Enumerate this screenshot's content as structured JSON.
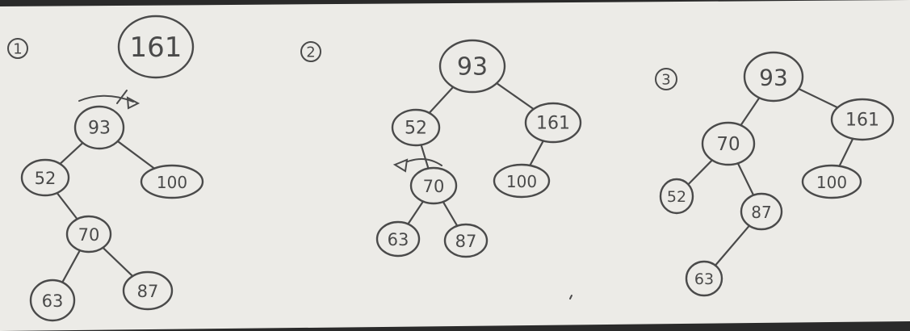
{
  "colors": {
    "paper": "#ecebe7",
    "ink": "#4a4a4a",
    "background": "#2a2a2a"
  },
  "steps": [
    {
      "id": "step-1",
      "label": "1",
      "nodes": [
        {
          "key": "161",
          "text": "161"
        },
        {
          "key": "93",
          "text": "93"
        },
        {
          "key": "52",
          "text": "52"
        },
        {
          "key": "100",
          "text": "100"
        },
        {
          "key": "70",
          "text": "70"
        },
        {
          "key": "63",
          "text": "63"
        },
        {
          "key": "87",
          "text": "87"
        }
      ],
      "edges": [
        [
          "93",
          "52"
        ],
        [
          "93",
          "100"
        ],
        [
          "52",
          "70"
        ],
        [
          "70",
          "63"
        ],
        [
          "70",
          "87"
        ]
      ],
      "rotation_arrow": "right-rotation-at-93"
    },
    {
      "id": "step-2",
      "label": "2",
      "nodes": [
        {
          "key": "93",
          "text": "93"
        },
        {
          "key": "52",
          "text": "52"
        },
        {
          "key": "161",
          "text": "161"
        },
        {
          "key": "70",
          "text": "70"
        },
        {
          "key": "100",
          "text": "100"
        },
        {
          "key": "63",
          "text": "63"
        },
        {
          "key": "87",
          "text": "87"
        }
      ],
      "edges": [
        [
          "93",
          "52"
        ],
        [
          "93",
          "161"
        ],
        [
          "52",
          "70"
        ],
        [
          "161",
          "100"
        ],
        [
          "70",
          "63"
        ],
        [
          "70",
          "87"
        ]
      ],
      "rotation_arrow": "left-rotation-at-70"
    },
    {
      "id": "step-3",
      "label": "3",
      "nodes": [
        {
          "key": "93",
          "text": "93"
        },
        {
          "key": "70",
          "text": "70"
        },
        {
          "key": "161",
          "text": "161"
        },
        {
          "key": "52",
          "text": "52"
        },
        {
          "key": "87",
          "text": "87"
        },
        {
          "key": "100",
          "text": "100"
        },
        {
          "key": "63",
          "text": "63"
        }
      ],
      "edges": [
        [
          "93",
          "70"
        ],
        [
          "93",
          "161"
        ],
        [
          "70",
          "52"
        ],
        [
          "70",
          "87"
        ],
        [
          "161",
          "100"
        ],
        [
          "87",
          "63"
        ]
      ],
      "rotation_arrow": ""
    }
  ]
}
